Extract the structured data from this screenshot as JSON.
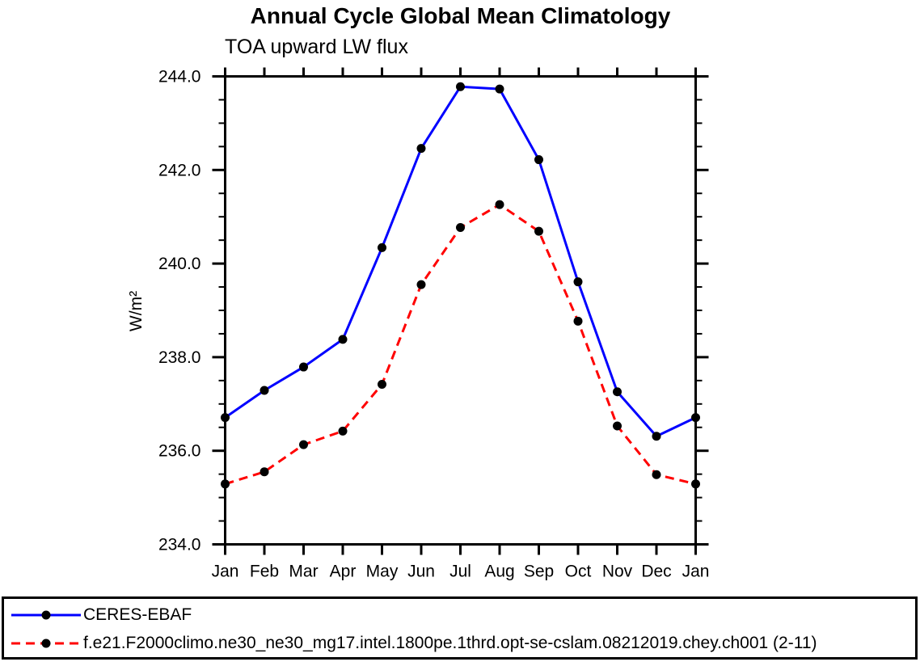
{
  "chart_data": {
    "type": "line",
    "title": "Annual Cycle Global Mean Climatology",
    "subtitle": "TOA upward LW flux",
    "ylabel": "W/m²",
    "xlabel": "",
    "categories": [
      "Jan",
      "Feb",
      "Mar",
      "Apr",
      "May",
      "Jun",
      "Jul",
      "Aug",
      "Sep",
      "Oct",
      "Nov",
      "Dec",
      "Jan"
    ],
    "series": [
      {
        "name": "CERES-EBAF",
        "color": "#0000ff",
        "line_style": "solid",
        "marker": "filled-circle",
        "marker_color": "#000000",
        "values": [
          236.71,
          237.29,
          237.79,
          238.38,
          240.34,
          242.46,
          243.78,
          243.73,
          242.22,
          239.61,
          237.26,
          236.31,
          236.71
        ]
      },
      {
        "name": "f.e21.F2000climo.ne30_ne30_mg17.intel.1800pe.1thrd.opt-se-cslam.08212019.chey.ch001 (2-11)",
        "color": "#ff0000",
        "line_style": "dashed",
        "marker": "filled-circle",
        "marker_color": "#000000",
        "values": [
          235.29,
          235.55,
          236.13,
          236.42,
          237.42,
          239.55,
          240.77,
          241.26,
          240.69,
          238.77,
          236.53,
          235.49,
          235.29
        ]
      }
    ],
    "ylim": [
      234.0,
      244.0
    ],
    "ytick_major_interval": 2.0,
    "ytick_minor_interval": 0.5,
    "ytick_labels": [
      "244.0",
      "242.0",
      "240.0",
      "238.0",
      "236.0",
      "234.0"
    ],
    "grid": false,
    "tick_style": "outward-all-sides",
    "legend_position": "bottom-box"
  },
  "legend": {
    "entries": [
      {
        "label": "CERES-EBAF",
        "color": "#0000ff",
        "style": "solid"
      },
      {
        "label": "f.e21.F2000climo.ne30_ne30_mg17.intel.1800pe.1thrd.opt-se-cslam.08212019.chey.ch001 (2-11)",
        "color": "#ff0000",
        "style": "dashed"
      }
    ]
  },
  "colors": {
    "axis": "#000000",
    "background": "#ffffff",
    "series_obs": "#0000ff",
    "series_model": "#ff0000",
    "marker": "#000000"
  }
}
